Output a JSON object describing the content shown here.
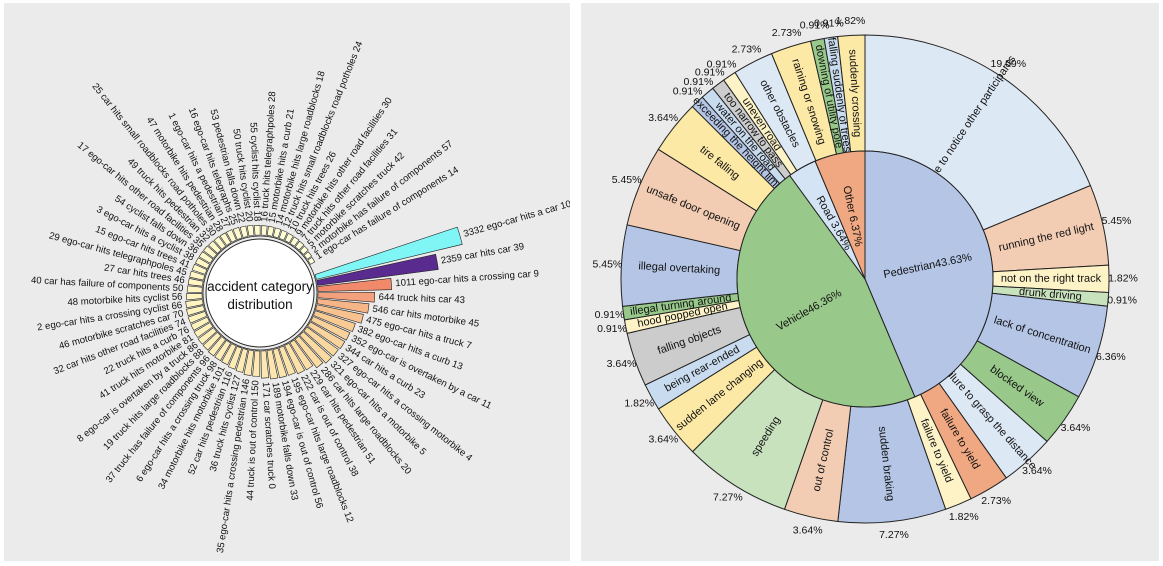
{
  "chart_data": [
    {
      "type": "circular-bar",
      "title": "accident category distribution",
      "bars": [
        {
          "id": 10,
          "label": "ego-car hits a car",
          "value": 3332,
          "color": "#7ff5f5"
        },
        {
          "id": 39,
          "label": "car hits car",
          "value": 2359,
          "color": "#5a2b8f"
        },
        {
          "id": 9,
          "label": "ego-car hits a crossing car",
          "value": 1011,
          "color": "#f08a6b"
        },
        {
          "id": 43,
          "label": "truck hits car",
          "value": 644,
          "color": "#f3a07c"
        },
        {
          "id": 45,
          "label": "car hits motorbike",
          "value": 546,
          "color": "#f6b586"
        },
        {
          "id": 7,
          "label": "ego-car hits a truck",
          "value": 475,
          "color": "#f7c28f"
        },
        {
          "id": 13,
          "label": "ego-car hits a curb",
          "value": 382,
          "color": "#f8cb95"
        },
        {
          "id": 11,
          "label": "ego-car is overtaken by a car",
          "value": 352,
          "color": "#f9d19a"
        },
        {
          "id": 23,
          "label": "car hits a curb",
          "value": 344,
          "color": "#f9d59d"
        },
        {
          "id": 4,
          "label": "ego-car hits a crossing motorbike",
          "value": 327,
          "color": "#fad9a0"
        },
        {
          "id": 5,
          "label": "ego-car hits a motorbike",
          "value": 321,
          "color": "#fadba2"
        },
        {
          "id": 20,
          "label": "car hits large roadblocks",
          "value": 286,
          "color": "#fbdda4"
        },
        {
          "id": 51,
          "label": "car hits pedestrian",
          "value": 229,
          "color": "#fbdfa6"
        },
        {
          "id": 38,
          "label": "car is out of control",
          "value": 222,
          "color": "#fce1a8"
        },
        {
          "id": 12,
          "label": "ego-car hits large roadblocks",
          "value": 195,
          "color": "#fce3aa"
        },
        {
          "id": 56,
          "label": "ego-car is out of control",
          "value": 194,
          "color": "#fce5ac"
        },
        {
          "id": 33,
          "label": "motorbike falls down",
          "value": 189,
          "color": "#fde6ae"
        },
        {
          "id": 0,
          "label": "car scratches truck",
          "value": 171,
          "color": "#fde7b0"
        },
        {
          "id": 44,
          "label": "truck is out of control",
          "value": 150,
          "color": "#fde8b1"
        },
        {
          "id": 35,
          "label": "ego-car hits a crossing pedestrian",
          "value": 146,
          "color": "#fde9b3"
        },
        {
          "id": 36,
          "label": "truck hits cyclist",
          "value": 127,
          "color": "#fdeab4"
        },
        {
          "id": 52,
          "label": "car hits pedestrian",
          "value": 116,
          "color": "#fdebb5"
        },
        {
          "id": 34,
          "label": "motorbike hits motorbike",
          "value": 101,
          "color": "#feecb6"
        },
        {
          "id": 6,
          "label": "ego-car hits a crossing truck",
          "value": 98,
          "color": "#feedb8"
        },
        {
          "id": 37,
          "label": "truck has failure of components",
          "value": 96,
          "color": "#feeeb9"
        },
        {
          "id": 19,
          "label": "truck hits large roadblocks",
          "value": 88,
          "color": "#feefba"
        },
        {
          "id": 8,
          "label": "ego-car is overtaken by a truck",
          "value": 86,
          "color": "#fef0bb"
        },
        {
          "id": 41,
          "label": "truck hits motorbike",
          "value": 81,
          "color": "#fef1bc"
        },
        {
          "id": 22,
          "label": "truck hits a curb",
          "value": 76,
          "color": "#fef2bd"
        },
        {
          "id": 32,
          "label": "car hits other road facilities",
          "value": 74,
          "color": "#fef3be"
        },
        {
          "id": 46,
          "label": "motorbike scratches car",
          "value": 70,
          "color": "#fff3bf"
        },
        {
          "id": 2,
          "label": "ego-car hits a crossing cyclist",
          "value": 66,
          "color": "#fff4c0"
        },
        {
          "id": 48,
          "label": "motorbike hits cyclist",
          "value": 56,
          "color": "#fff5c1"
        },
        {
          "id": 40,
          "label": "car has failure of components",
          "value": 50,
          "color": "#fff5c2"
        },
        {
          "id": 27,
          "label": "car hits trees",
          "value": 46,
          "color": "#fff6c3"
        },
        {
          "id": 29,
          "label": "ego-car hits telegraphpoles",
          "value": 45,
          "color": "#fff6c4"
        },
        {
          "id": 15,
          "label": "ego-car hits trees",
          "value": 41,
          "color": "#fff7c5"
        },
        {
          "id": 3,
          "label": "ego-car hits a cyclist",
          "value": 38,
          "color": "#fff7c6"
        },
        {
          "id": 54,
          "label": "cyclist falls down",
          "value": 36,
          "color": "#fff8c7"
        },
        {
          "id": 17,
          "label": "ego-car hits other road facilities",
          "value": 35,
          "color": "#fff8c8"
        },
        {
          "id": 49,
          "label": "truck hits pedestrian",
          "value": 32,
          "color": "#fff8c9"
        },
        {
          "id": 25,
          "label": "car hits small roadblocks road potholes",
          "value": 30,
          "color": "#fff9ca"
        },
        {
          "id": 47,
          "label": "motorbike hits pedestrian",
          "value": 28,
          "color": "#fff9cb"
        },
        {
          "id": 1,
          "label": "ego-car hits a pedestrian",
          "value": 27,
          "color": "#fffacc"
        },
        {
          "id": 16,
          "label": "ego-car hits telegraphs",
          "value": 25,
          "color": "#fffacd"
        },
        {
          "id": 53,
          "label": "pedestrian falls down",
          "value": 22,
          "color": "#fffbce"
        },
        {
          "id": 50,
          "label": "truck hits cyclist",
          "value": 20,
          "color": "#fffbcf"
        },
        {
          "id": 55,
          "label": "cyclist hits cyclist",
          "value": 18,
          "color": "#fffcd0"
        },
        {
          "id": 28,
          "label": "truck hits telegraphpoles",
          "value": 16,
          "color": "#fffcd1"
        },
        {
          "id": 21,
          "label": "motorbike hits a curb",
          "value": 15,
          "color": "#fffdd2"
        },
        {
          "id": 18,
          "label": "motorbike hits large roadblocks",
          "value": 14,
          "color": "#fffdd3"
        },
        {
          "id": 24,
          "label": "truck hits small roadblocks road potholes",
          "value": 12,
          "color": "#fffed4"
        },
        {
          "id": 26,
          "label": "truck hits trees",
          "value": 10,
          "color": "#fffed5"
        },
        {
          "id": 30,
          "label": "motorbike hits other road facilities",
          "value": 9,
          "color": "#fffed6"
        },
        {
          "id": 31,
          "label": "truck hits other road facilities",
          "value": 7,
          "color": "#ffffd7"
        },
        {
          "id": 42,
          "label": "motorbike scratches truck",
          "value": 5,
          "color": "#ffffd8"
        },
        {
          "id": 57,
          "label": "motorbike has failure of components",
          "value": 2,
          "color": "#ffffd9"
        },
        {
          "id": 14,
          "label": "ego-car has failure of components",
          "value": 1,
          "color": "#ffffda"
        }
      ]
    },
    {
      "type": "sunburst",
      "title": "",
      "inner": [
        {
          "label": "Pedestrian43.63%",
          "value": 43.63,
          "color": "#b4c5e6"
        },
        {
          "label": "Vehicle46.36%",
          "value": 46.36,
          "color": "#98c98a"
        },
        {
          "label": "Road 3.64%",
          "value": 3.64,
          "color": "#d5e4f4"
        },
        {
          "label": "Other 6.37%",
          "value": 6.37,
          "color": "#f0a882"
        }
      ],
      "outer": [
        {
          "label": "failure to notice other participants",
          "pct": "19.09%",
          "value": 19.09,
          "color": "#dde8f5"
        },
        {
          "label": "running the red light",
          "pct": "5.45%",
          "value": 5.45,
          "color": "#f2cdb3"
        },
        {
          "label": "not on the right track",
          "pct": "1.82%",
          "value": 1.82,
          "color": "#fdf3c7"
        },
        {
          "label": "drunk driving",
          "pct": "0.91%",
          "value": 0.91,
          "color": "#c8e2be"
        },
        {
          "label": "lack of concentration",
          "pct": "6.36%",
          "value": 6.36,
          "color": "#b4c5e6"
        },
        {
          "label": "blocked view",
          "pct": "3.64%",
          "value": 3.64,
          "color": "#98c98a"
        },
        {
          "label": "failure to grasp the distance",
          "pct": "3.64%",
          "value": 3.64,
          "color": "#dde8f5"
        },
        {
          "label": "failure to yield",
          "pct": "2.73%",
          "value": 2.73,
          "color": "#f0a882"
        },
        {
          "label": "failure to yield",
          "pct": "1.82%",
          "value": 1.82,
          "color": "#fdf3c7"
        },
        {
          "label": "sudden braking",
          "pct": "7.27%",
          "value": 7.27,
          "color": "#b4c5e6"
        },
        {
          "label": "out of control",
          "pct": "3.64%",
          "value": 3.64,
          "color": "#f2cdb3"
        },
        {
          "label": "speeding",
          "pct": "7.27%",
          "value": 7.27,
          "color": "#c8e2be"
        },
        {
          "label": "sudden lane changing",
          "pct": "3.64%",
          "value": 3.64,
          "color": "#fde9a6"
        },
        {
          "label": "being rear-ended",
          "pct": "1.82%",
          "value": 1.82,
          "color": "#c9dcef"
        },
        {
          "label": "falling objects",
          "pct": "3.64%",
          "value": 3.64,
          "color": "#cccccc"
        },
        {
          "label": "hood popped open",
          "pct": "0.91%",
          "value": 0.91,
          "color": "#fdf3c7"
        },
        {
          "label": "illegal turning around",
          "pct": "0.91%",
          "value": 0.91,
          "color": "#98c98a"
        },
        {
          "label": "illegal overtaking",
          "pct": "5.45%",
          "value": 5.45,
          "color": "#b4c5e6"
        },
        {
          "label": "unsafe door opening",
          "pct": "5.45%",
          "value": 5.45,
          "color": "#f2cdb3"
        },
        {
          "label": "tire falling",
          "pct": "3.64%",
          "value": 3.64,
          "color": "#fde9a6"
        },
        {
          "label": "exceeding the height limit",
          "pct": "0.91%",
          "value": 0.91,
          "color": "#b4c5e6"
        },
        {
          "label": "water on the road",
          "pct": "0.91%",
          "value": 0.91,
          "color": "#c9dcef"
        },
        {
          "label": "too narrow to pass",
          "pct": "0.91%",
          "value": 0.91,
          "color": "#cccccc"
        },
        {
          "label": "uneven road",
          "pct": "0.91%",
          "value": 0.91,
          "color": "#fdf3c7"
        },
        {
          "label": "other obstacles",
          "pct": "2.73%",
          "value": 2.73,
          "color": "#dde8f5"
        },
        {
          "label": "raining or snowing",
          "pct": "2.73%",
          "value": 2.73,
          "color": "#fde9a6"
        },
        {
          "label": "downing of utility pole",
          "pct": "0.91%",
          "value": 0.91,
          "color": "#98c98a"
        },
        {
          "label": "falling suddenly of trees",
          "pct": "0.91%",
          "value": 0.91,
          "color": "#c9dcef"
        },
        {
          "label": "suddenly crossing",
          "pct": "1.82%",
          "value": 1.82,
          "color": "#fde9a6"
        }
      ]
    }
  ]
}
